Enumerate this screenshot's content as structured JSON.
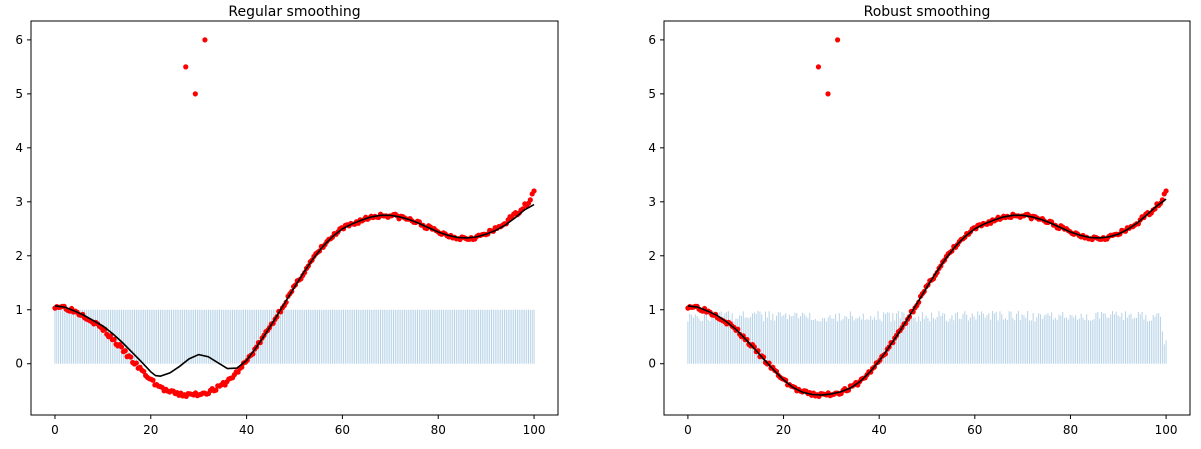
{
  "chart_data": [
    {
      "type": "line",
      "title": "Regular smoothing",
      "xlabel": "",
      "ylabel": "",
      "xlim": [
        -5,
        105
      ],
      "ylim": [
        -0.95,
        6.35
      ],
      "xticks": [
        0,
        20,
        40,
        60,
        80,
        100
      ],
      "yticks": [
        0,
        1,
        2,
        3,
        4,
        5,
        6
      ],
      "grid": false,
      "legend": "none",
      "outliers": [
        {
          "x": 27.3,
          "y": 5.5
        },
        {
          "x": 29.3,
          "y": 5.0
        },
        {
          "x": 31.3,
          "y": 6.0
        }
      ],
      "weights_profile": "uniform",
      "smooth_curve": [
        [
          0,
          1.07
        ],
        [
          2,
          1.05
        ],
        [
          4,
          0.98
        ],
        [
          6,
          0.9
        ],
        [
          8,
          0.8
        ],
        [
          10,
          0.7
        ],
        [
          12,
          0.56
        ],
        [
          14,
          0.4
        ],
        [
          16,
          0.22
        ],
        [
          18,
          0.04
        ],
        [
          20,
          -0.15
        ],
        [
          21,
          -0.22
        ],
        [
          22,
          -0.23
        ],
        [
          24,
          -0.17
        ],
        [
          26,
          -0.05
        ],
        [
          28,
          0.09
        ],
        [
          30,
          0.17
        ],
        [
          32,
          0.13
        ],
        [
          34,
          0.02
        ],
        [
          36,
          -0.09
        ],
        [
          38,
          -0.08
        ],
        [
          40,
          0.06
        ],
        [
          42,
          0.3
        ],
        [
          44,
          0.56
        ],
        [
          46,
          0.84
        ],
        [
          48,
          1.13
        ],
        [
          50,
          1.42
        ],
        [
          52,
          1.7
        ],
        [
          54,
          1.96
        ],
        [
          56,
          2.18
        ],
        [
          58,
          2.36
        ],
        [
          60,
          2.5
        ],
        [
          62,
          2.59
        ],
        [
          64,
          2.66
        ],
        [
          66,
          2.72
        ],
        [
          68,
          2.75
        ],
        [
          70,
          2.75
        ],
        [
          72,
          2.72
        ],
        [
          74,
          2.67
        ],
        [
          76,
          2.6
        ],
        [
          78,
          2.52
        ],
        [
          80,
          2.44
        ],
        [
          82,
          2.38
        ],
        [
          84,
          2.34
        ],
        [
          86,
          2.33
        ],
        [
          88,
          2.35
        ],
        [
          90,
          2.4
        ],
        [
          92,
          2.47
        ],
        [
          94,
          2.57
        ],
        [
          96,
          2.7
        ],
        [
          98,
          2.85
        ],
        [
          100,
          2.95
        ]
      ]
    },
    {
      "type": "line",
      "title": "Robust smoothing",
      "xlabel": "",
      "ylabel": "",
      "xlim": [
        -5,
        105
      ],
      "ylim": [
        -0.95,
        6.35
      ],
      "xticks": [
        0,
        20,
        40,
        60,
        80,
        100
      ],
      "yticks": [
        0,
        1,
        2,
        3,
        4,
        5,
        6
      ],
      "grid": false,
      "legend": "none",
      "outliers": [
        {
          "x": 27.3,
          "y": 5.5
        },
        {
          "x": 29.3,
          "y": 5.0
        },
        {
          "x": 31.3,
          "y": 6.0
        }
      ],
      "weights_profile": "robust",
      "smooth_curve": [
        [
          0,
          1.07
        ],
        [
          2,
          1.05
        ],
        [
          4,
          0.98
        ],
        [
          6,
          0.9
        ],
        [
          8,
          0.78
        ],
        [
          10,
          0.64
        ],
        [
          12,
          0.46
        ],
        [
          14,
          0.27
        ],
        [
          16,
          0.07
        ],
        [
          18,
          -0.12
        ],
        [
          20,
          -0.3
        ],
        [
          22,
          -0.44
        ],
        [
          24,
          -0.53
        ],
        [
          26,
          -0.57
        ],
        [
          28,
          -0.58
        ],
        [
          30,
          -0.56
        ],
        [
          32,
          -0.52
        ],
        [
          34,
          -0.45
        ],
        [
          36,
          -0.33
        ],
        [
          38,
          -0.16
        ],
        [
          40,
          0.05
        ],
        [
          42,
          0.3
        ],
        [
          44,
          0.56
        ],
        [
          46,
          0.84
        ],
        [
          48,
          1.13
        ],
        [
          50,
          1.42
        ],
        [
          52,
          1.7
        ],
        [
          54,
          1.96
        ],
        [
          56,
          2.18
        ],
        [
          58,
          2.36
        ],
        [
          60,
          2.5
        ],
        [
          62,
          2.59
        ],
        [
          64,
          2.66
        ],
        [
          66,
          2.72
        ],
        [
          68,
          2.75
        ],
        [
          70,
          2.75
        ],
        [
          72,
          2.72
        ],
        [
          74,
          2.67
        ],
        [
          76,
          2.6
        ],
        [
          78,
          2.52
        ],
        [
          80,
          2.44
        ],
        [
          82,
          2.38
        ],
        [
          84,
          2.34
        ],
        [
          86,
          2.33
        ],
        [
          88,
          2.35
        ],
        [
          90,
          2.4
        ],
        [
          92,
          2.49
        ],
        [
          94,
          2.61
        ],
        [
          96,
          2.76
        ],
        [
          98,
          2.92
        ],
        [
          100,
          3.05
        ]
      ]
    }
  ],
  "colors": {
    "points": "#ff0000",
    "curve": "#000000",
    "weights": "#b7d3e8"
  }
}
